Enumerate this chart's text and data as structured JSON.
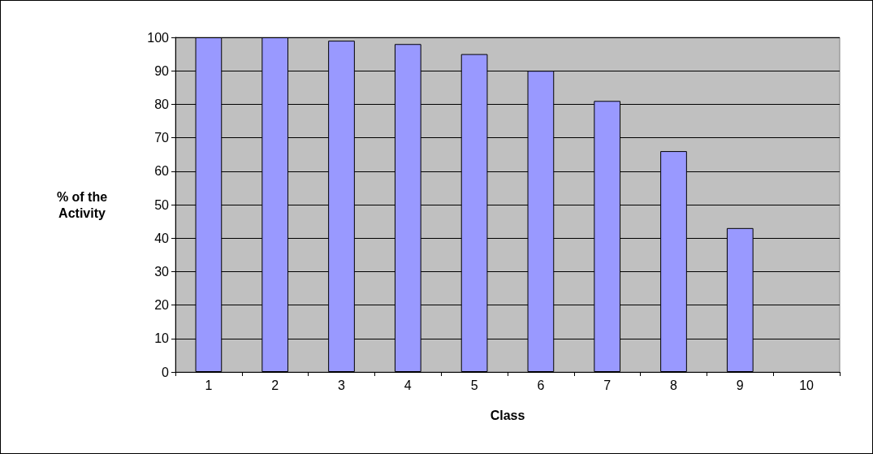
{
  "chart_data": {
    "type": "bar",
    "xlabel": "Class",
    "ylabel": "% of the Activity",
    "categories": [
      "1",
      "2",
      "3",
      "4",
      "5",
      "6",
      "7",
      "8",
      "9",
      "10"
    ],
    "values": [
      100,
      100,
      99,
      98,
      95,
      90,
      81,
      66,
      43,
      0
    ],
    "color": "#9999ff",
    "ylim": [
      0,
      100
    ],
    "yticks": [
      0,
      10,
      20,
      30,
      40,
      50,
      60,
      70,
      80,
      90,
      100
    ],
    "grid": "y"
  }
}
